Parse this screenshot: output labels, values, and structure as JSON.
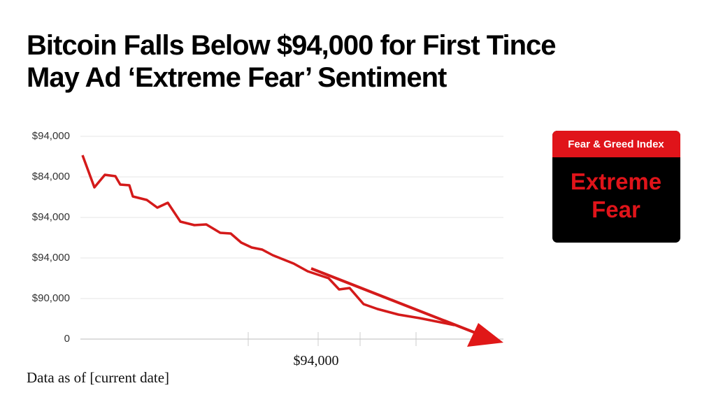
{
  "header": {
    "title_lines": [
      "Bitcoin Falls Below $94,000 for First Tince",
      "May Ad ‘Extreme Fear’ Sentiment"
    ]
  },
  "chart": {
    "y_axis_labels": [
      "$94,000",
      "$84,000",
      "$94,000",
      "$94,000",
      "$90,000",
      "0"
    ],
    "x_axis_label": "$94,000"
  },
  "badge": {
    "title": "Fear & Greed Index",
    "lines": [
      "Extreme",
      "Fear"
    ]
  },
  "footer": {
    "note": "Data as of [current date]"
  }
}
